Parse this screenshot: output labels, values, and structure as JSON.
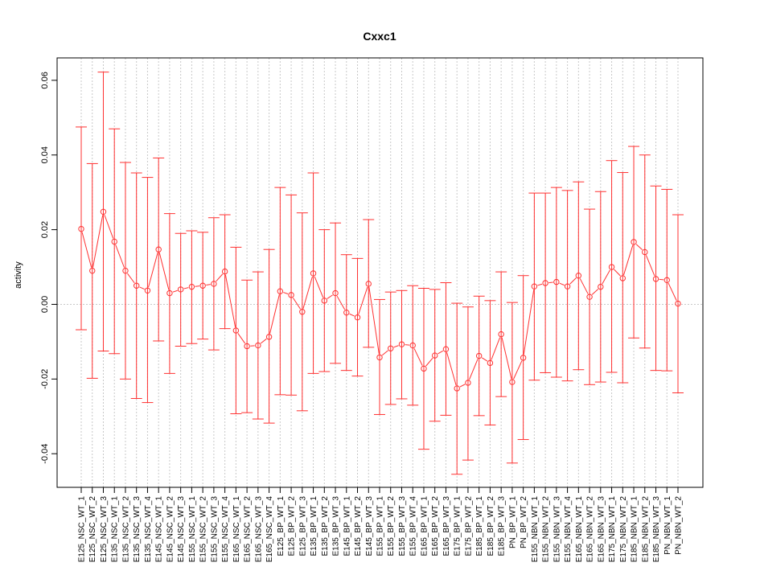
{
  "chart_data": {
    "type": "line",
    "title": "Cxxc1",
    "xlabel": "",
    "ylabel": "activity",
    "ylim": [
      -0.049,
      0.066
    ],
    "y_ticks": [
      -0.04,
      -0.02,
      0.0,
      0.02,
      0.04,
      0.06
    ],
    "y_tick_labels": [
      "-0.04",
      "-0.02",
      "0.00",
      "0.02",
      "0.04",
      "0.06"
    ],
    "grid": true,
    "reference_line": 0,
    "series_color": "#ff3030",
    "grid_color": "#c8c8c8",
    "categories": [
      "E125_NSC_WT_1",
      "E125_NSC_WT_2",
      "E125_NSC_WT_3",
      "E135_NSC_WT_1",
      "E135_NSC_WT_2",
      "E135_NSC_WT_3",
      "E135_NSC_WT_4",
      "E145_NSC_WT_1",
      "E145_NSC_WT_2",
      "E145_NSC_WT_3",
      "E155_NSC_WT_1",
      "E155_NSC_WT_2",
      "E155_NSC_WT_3",
      "E155_NSC_WT_4",
      "E165_NSC_WT_1",
      "E165_NSC_WT_2",
      "E165_NSC_WT_3",
      "E165_NSC_WT_4",
      "E125_BP_WT_1",
      "E125_BP_WT_2",
      "E125_BP_WT_3",
      "E135_BP_WT_1",
      "E135_BP_WT_2",
      "E135_BP_WT_3",
      "E145_BP_WT_1",
      "E145_BP_WT_2",
      "E145_BP_WT_3",
      "E155_BP_WT_1",
      "E155_BP_WT_2",
      "E155_BP_WT_3",
      "E155_BP_WT_4",
      "E165_BP_WT_1",
      "E165_BP_WT_2",
      "E165_BP_WT_3",
      "E175_BP_WT_1",
      "E175_BP_WT_2",
      "E185_BP_WT_1",
      "E185_BP_WT_2",
      "E185_BP_WT_3",
      "PN_BP_WT_1",
      "PN_BP_WT_2",
      "E155_NBN_WT_1",
      "E155_NBN_WT_2",
      "E155_NBN_WT_3",
      "E155_NBN_WT_4",
      "E165_NBN_WT_1",
      "E165_NBN_WT_2",
      "E165_NBN_WT_3",
      "E175_NBN_WT_1",
      "E175_NBN_WT_2",
      "E185_NBN_WT_1",
      "E185_NBN_WT_2",
      "E185_NBN_WT_3",
      "PN_NBN_WT_1",
      "PN_NBN_WT_2"
    ],
    "values": [
      0.0202,
      0.009,
      0.0248,
      0.0168,
      0.009,
      0.005,
      0.0037,
      0.0147,
      0.003,
      0.004,
      0.0047,
      0.005,
      0.0055,
      0.0088,
      -0.007,
      -0.0112,
      -0.011,
      -0.0087,
      0.0035,
      0.0025,
      -0.002,
      0.0083,
      0.001,
      0.003,
      -0.0022,
      -0.0035,
      0.0055,
      -0.0142,
      -0.0118,
      -0.0107,
      -0.011,
      -0.0172,
      -0.0137,
      -0.012,
      -0.0225,
      -0.021,
      -0.0138,
      -0.0157,
      -0.008,
      -0.0208,
      -0.0143,
      0.0048,
      0.0057,
      0.006,
      0.0048,
      0.0077,
      0.002,
      0.0047,
      0.01,
      0.007,
      0.0167,
      0.014,
      0.0068,
      0.0065,
      0.0002
    ],
    "upper": [
      0.0475,
      0.0377,
      0.0622,
      0.047,
      0.038,
      0.0352,
      0.034,
      0.0392,
      0.0243,
      0.019,
      0.0197,
      0.0193,
      0.0232,
      0.024,
      0.0153,
      0.0065,
      0.0087,
      0.0147,
      0.0313,
      0.0293,
      0.0245,
      0.0352,
      0.02,
      0.0218,
      0.0133,
      0.0123,
      0.0227,
      0.0013,
      0.0033,
      0.0037,
      0.005,
      0.0043,
      0.004,
      0.0058,
      0.0003,
      -0.0007,
      0.0022,
      0.001,
      0.0087,
      0.0005,
      0.0077,
      0.0298,
      0.0298,
      0.0313,
      0.0305,
      0.0328,
      0.0255,
      0.0302,
      0.0385,
      0.0353,
      0.0423,
      0.04,
      0.0317,
      0.0308,
      0.024
    ],
    "lower": [
      -0.0068,
      -0.0198,
      -0.0125,
      -0.0132,
      -0.02,
      -0.0252,
      -0.0263,
      -0.0098,
      -0.0185,
      -0.0112,
      -0.0105,
      -0.0093,
      -0.0122,
      -0.0065,
      -0.0293,
      -0.029,
      -0.0307,
      -0.0318,
      -0.0242,
      -0.0243,
      -0.0285,
      -0.0185,
      -0.018,
      -0.0158,
      -0.0177,
      -0.0192,
      -0.0115,
      -0.0295,
      -0.0268,
      -0.0253,
      -0.027,
      -0.0388,
      -0.0313,
      -0.0297,
      -0.0455,
      -0.0417,
      -0.0298,
      -0.0323,
      -0.0247,
      -0.0425,
      -0.0362,
      -0.0203,
      -0.0183,
      -0.0195,
      -0.0205,
      -0.0175,
      -0.0215,
      -0.0208,
      -0.0182,
      -0.021,
      -0.009,
      -0.0117,
      -0.0177,
      -0.0178,
      -0.0237
    ]
  }
}
